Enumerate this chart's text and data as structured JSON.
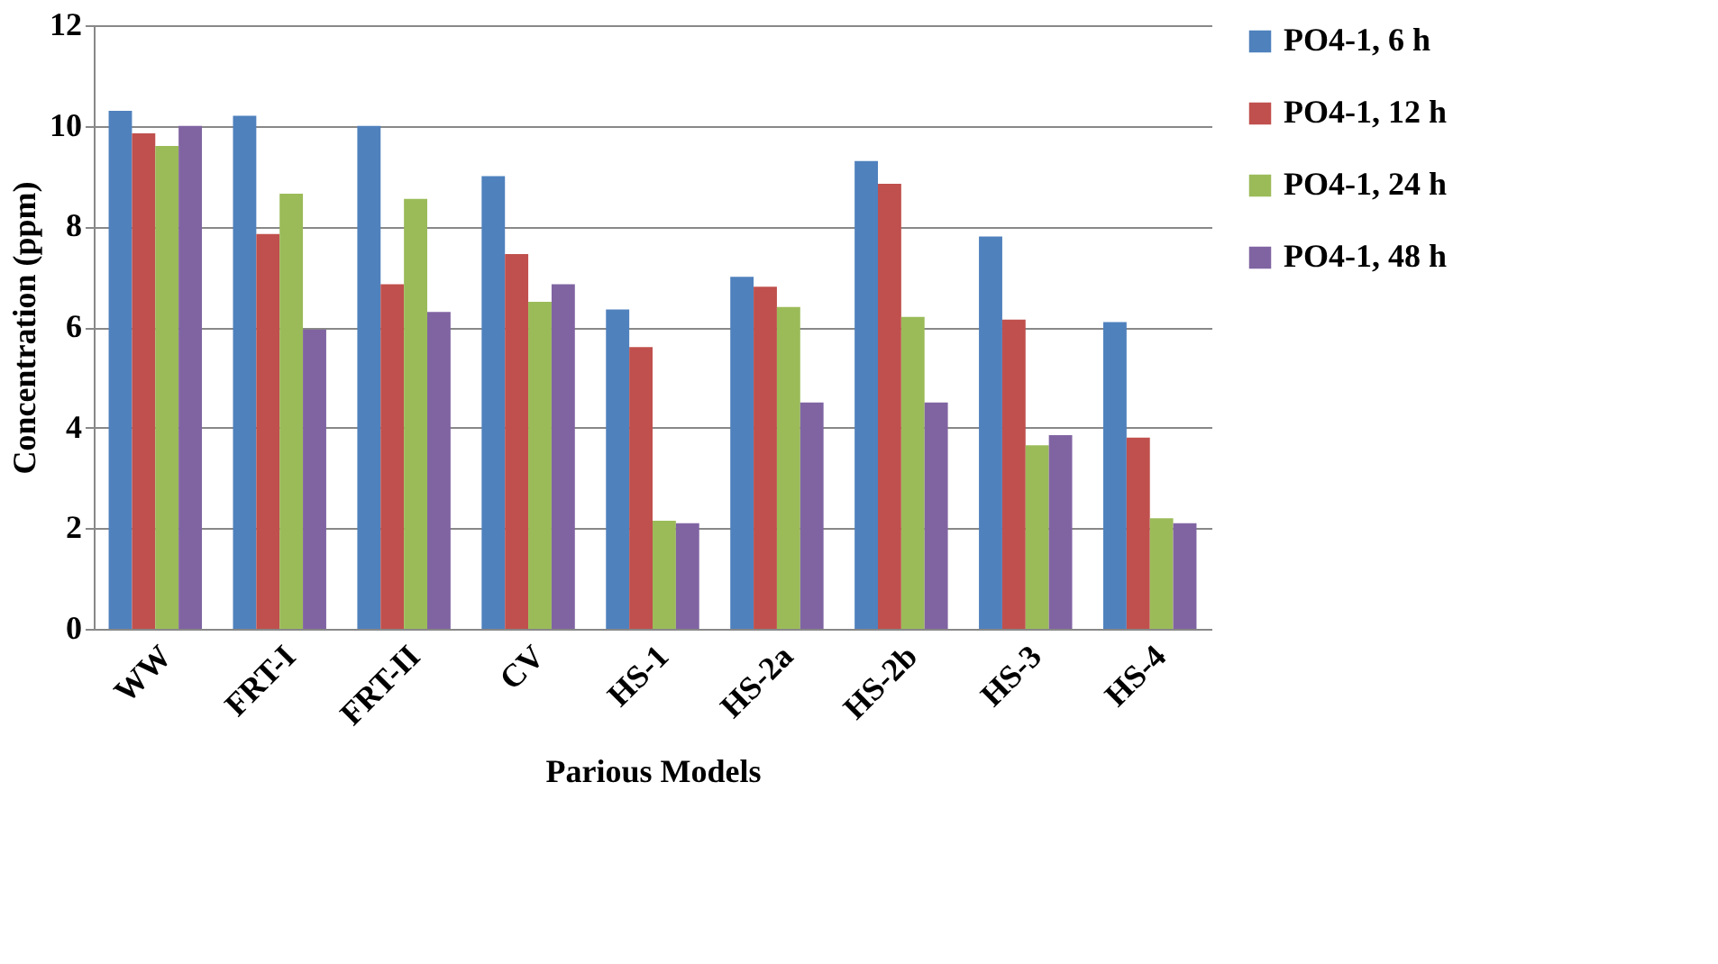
{
  "chart_data": {
    "type": "bar",
    "xlabel": "Parious Models",
    "ylabel": "Concentration (ppm)",
    "categories": [
      "WW",
      "FRT-I",
      "FRT-II",
      "CV",
      "HS-1",
      "HS-2a",
      "HS-2b",
      "HS-3",
      "HS-4"
    ],
    "series": [
      {
        "name": "PO4-1, 6 h",
        "color": "#4f81bd",
        "values": [
          10.3,
          10.2,
          10.0,
          9.0,
          6.35,
          7.0,
          9.3,
          7.8,
          6.1
        ]
      },
      {
        "name": "PO4-1, 12 h",
        "color": "#c0504d",
        "values": [
          9.85,
          7.85,
          6.85,
          7.45,
          5.6,
          6.8,
          8.85,
          6.15,
          3.8
        ]
      },
      {
        "name": "PO4-1, 24 h",
        "color": "#9bbb59",
        "values": [
          9.6,
          8.65,
          8.55,
          6.5,
          2.15,
          6.4,
          6.2,
          3.65,
          2.2
        ]
      },
      {
        "name": "PO4-1, 48 h",
        "color": "#8064a2",
        "values": [
          10.0,
          5.95,
          6.3,
          6.85,
          2.1,
          4.5,
          4.5,
          3.85,
          2.1
        ]
      }
    ],
    "ylim": [
      0,
      12
    ],
    "yticks": [
      0,
      2,
      4,
      6,
      8,
      10,
      12
    ],
    "grid": "y",
    "legend": "right"
  }
}
